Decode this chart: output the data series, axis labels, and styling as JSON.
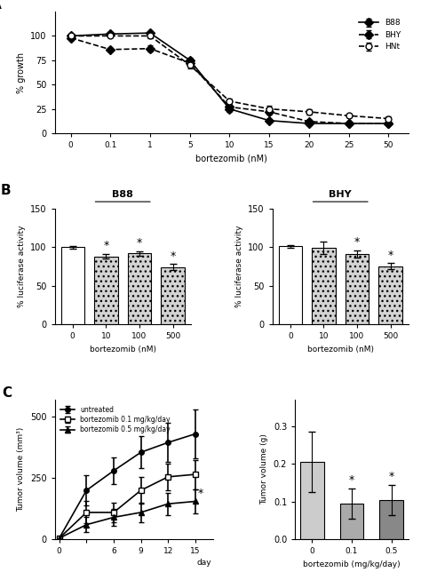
{
  "panel_A": {
    "x": [
      0,
      0.1,
      1,
      5,
      10,
      15,
      20,
      25,
      50
    ],
    "B88": [
      100,
      102,
      103,
      75,
      25,
      13,
      10,
      10,
      10
    ],
    "BHY": [
      98,
      86,
      87,
      72,
      27,
      22,
      12,
      10,
      10
    ],
    "HNt": [
      100,
      100,
      100,
      70,
      33,
      25,
      22,
      18,
      15
    ],
    "B88_err": [
      1,
      2,
      2,
      3,
      3,
      2,
      1,
      1,
      1
    ],
    "BHY_err": [
      2,
      2,
      3,
      3,
      3,
      3,
      2,
      1,
      1
    ],
    "HNt_err": [
      1,
      1,
      2,
      3,
      3,
      3,
      3,
      2,
      2
    ],
    "ylabel": "% growth",
    "xlabel": "bortezomib (nM)",
    "yticks": [
      0,
      25,
      50,
      75,
      100
    ],
    "xticklabels": [
      "0",
      "0.1",
      "1",
      "5",
      "10",
      "15",
      "20",
      "25",
      "50"
    ]
  },
  "panel_B_B88": {
    "x": [
      0,
      1,
      2,
      3
    ],
    "xticklabels": [
      "0",
      "10",
      "100",
      "500"
    ],
    "values": [
      100,
      88,
      92,
      74
    ],
    "errors": [
      1.5,
      3,
      3,
      4
    ],
    "colors": [
      "white",
      "lightgray",
      "lightgray",
      "lightgray"
    ],
    "hatches": [
      "",
      "...",
      "...",
      "..."
    ],
    "title": "B88",
    "ylabel": "% luciferase activity",
    "xlabel": "bortezomib (nM)",
    "yticks": [
      0,
      50,
      100,
      150
    ],
    "ylim": [
      0,
      150
    ],
    "stars": [
      false,
      true,
      true,
      true
    ]
  },
  "panel_B_BHY": {
    "x": [
      0,
      1,
      2,
      3
    ],
    "xticklabels": [
      "0",
      "10",
      "100",
      "500"
    ],
    "values": [
      101,
      99,
      91,
      75
    ],
    "errors": [
      2,
      8,
      5,
      4
    ],
    "colors": [
      "white",
      "lightgray",
      "lightgray",
      "lightgray"
    ],
    "hatches": [
      "",
      "...",
      "...",
      "..."
    ],
    "title": "BHY",
    "ylabel": "% luciferase activity",
    "xlabel": "bortezomib (nM)",
    "yticks": [
      0,
      50,
      100,
      150
    ],
    "ylim": [
      0,
      150
    ],
    "stars": [
      false,
      false,
      true,
      true
    ]
  },
  "panel_C_line": {
    "x": [
      0,
      3,
      6,
      9,
      12,
      15
    ],
    "untreated": [
      5,
      200,
      280,
      355,
      395,
      430
    ],
    "bort01": [
      5,
      110,
      110,
      200,
      255,
      265
    ],
    "bort05": [
      5,
      60,
      90,
      110,
      145,
      155
    ],
    "untreated_err": [
      2,
      60,
      55,
      65,
      80,
      100
    ],
    "bort01_err": [
      2,
      45,
      40,
      55,
      55,
      60
    ],
    "bort05_err": [
      2,
      30,
      35,
      40,
      45,
      50
    ],
    "ylabel": "Tumor volume (mm³)",
    "yticks": [
      0,
      250,
      500
    ],
    "ylim": [
      0,
      570
    ],
    "xticks": [
      0,
      3,
      6,
      9,
      12,
      15
    ],
    "xticklabels": [
      "0",
      "",
      "6",
      "9",
      "12",
      "15"
    ]
  },
  "panel_C_bar": {
    "x": [
      0,
      1,
      2
    ],
    "xticklabels": [
      "0",
      "0.1",
      "0.5"
    ],
    "values": [
      0.205,
      0.095,
      0.103
    ],
    "errors": [
      0.08,
      0.04,
      0.04
    ],
    "colors": [
      "#cccccc",
      "#aaaaaa",
      "#888888"
    ],
    "ylabel": "Tumor volume (g)",
    "xlabel": "bortezomib (mg/kg/day)",
    "yticks": [
      0.0,
      0.1,
      0.2,
      0.3
    ],
    "ylim": [
      0,
      0.37
    ],
    "stars": [
      false,
      true,
      true
    ]
  }
}
